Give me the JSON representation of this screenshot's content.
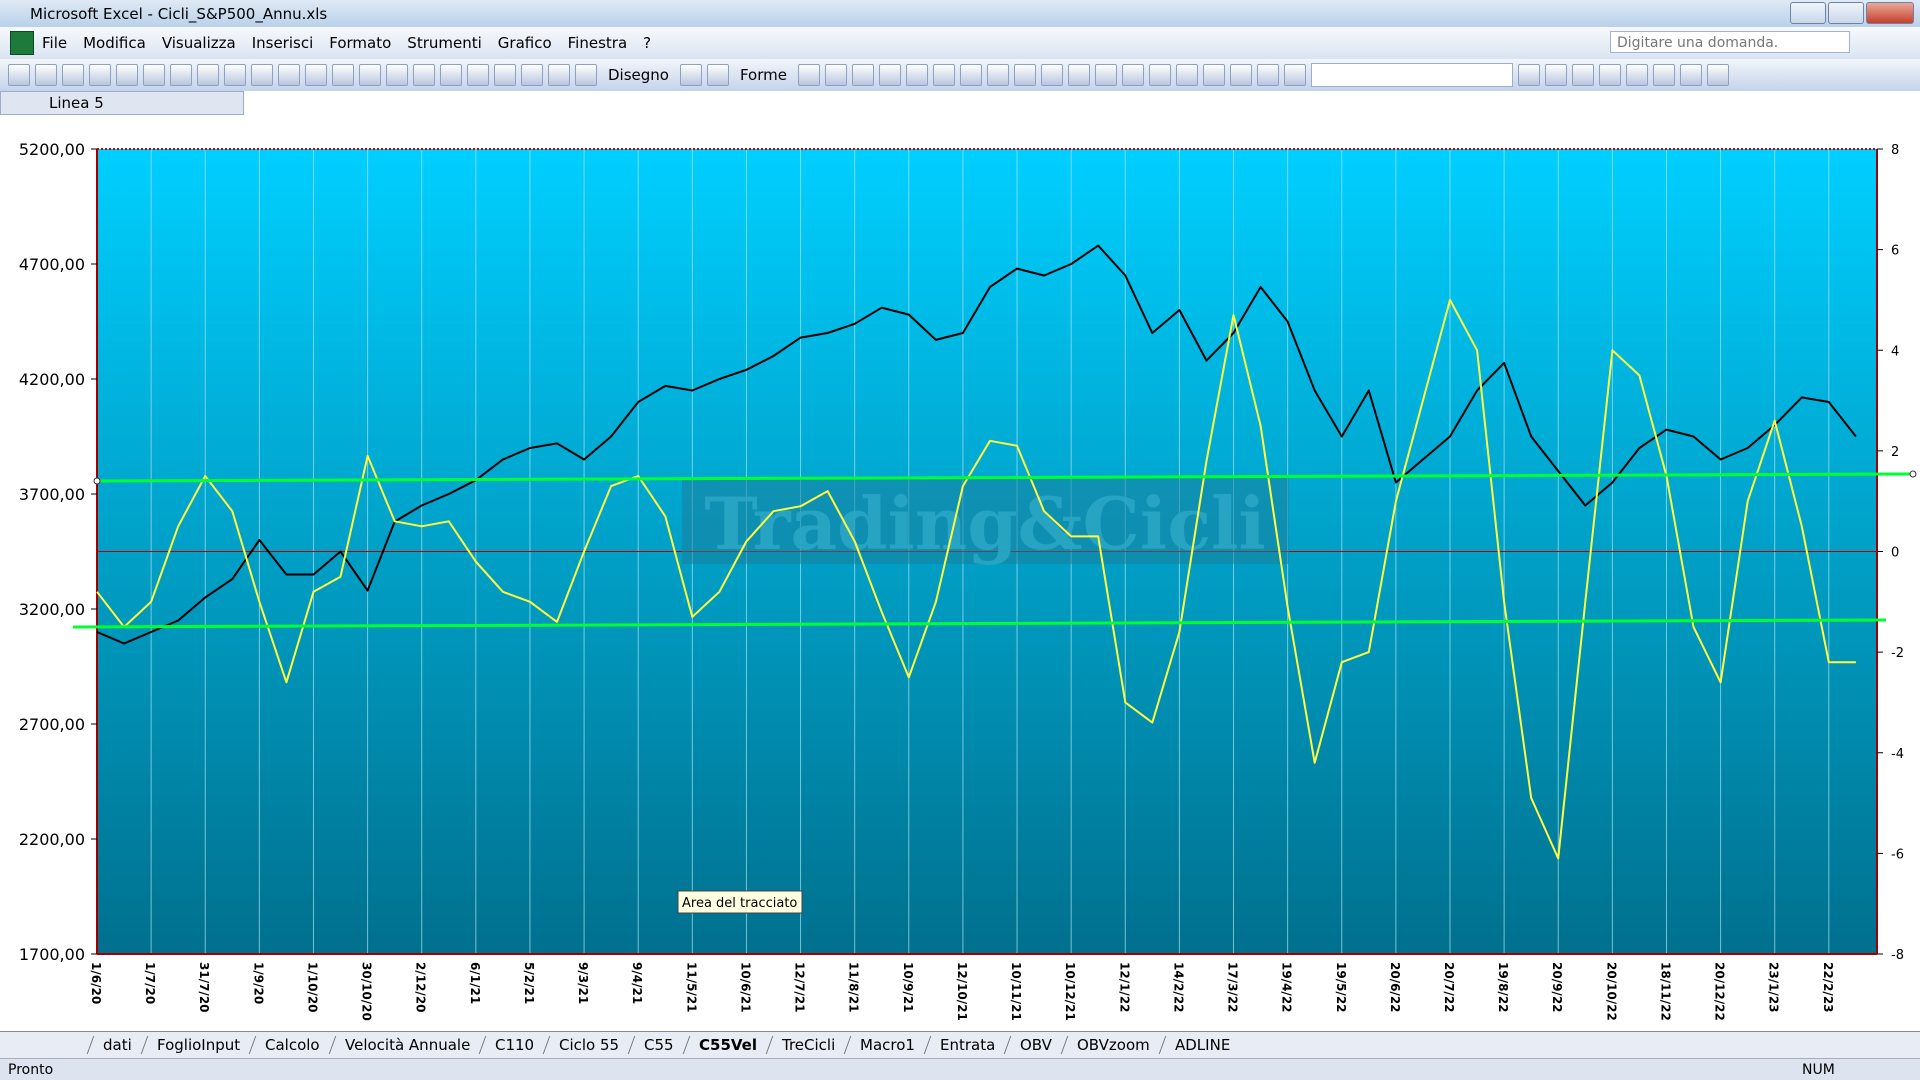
{
  "window": {
    "title": "Microsoft Excel - Cicli_S&P500_Annu.xls"
  },
  "menu": [
    "File",
    "Modifica",
    "Visualizza",
    "Inserisci",
    "Formato",
    "Strumenti",
    "Grafico",
    "Finestra",
    "?"
  ],
  "toolbar": {
    "drawing": "Disegno",
    "shapes": "Forme",
    "ask": "Digitare una domanda."
  },
  "name_box": "Linea 5",
  "chart_data": {
    "type": "line",
    "watermark": "Trading&Cicli",
    "tooltip": "Area del tracciato",
    "categories": [
      "1/6/20",
      null,
      "1/7/20",
      null,
      "31/7/20",
      null,
      "1/9/20",
      null,
      "1/10/20",
      null,
      "30/10/20",
      null,
      "2/12/20",
      null,
      "6/1/21",
      null,
      "5/2/21",
      null,
      "9/3/21",
      null,
      "9/4/21",
      null,
      "11/5/21",
      null,
      "10/6/21",
      null,
      "12/7/21",
      null,
      "11/8/21",
      null,
      "10/9/21",
      null,
      "12/10/21",
      null,
      "10/11/21",
      null,
      "10/12/21",
      null,
      "12/1/22",
      null,
      "14/2/22",
      null,
      "17/3/22",
      null,
      "19/4/22",
      null,
      "19/5/22",
      null,
      "20/6/22",
      null,
      "20/7/22",
      null,
      "19/8/22",
      null,
      "20/9/22",
      null,
      "20/10/22",
      null,
      "18/11/22",
      null,
      "20/12/22",
      null,
      "23/1/23",
      null,
      "22/2/23",
      null
    ],
    "series": [
      {
        "color": "#000000",
        "values": [
          3100,
          3050,
          3100,
          3150,
          3250,
          3330,
          3500,
          3350,
          3350,
          3450,
          3280,
          3580,
          3650,
          3700,
          3760,
          3850,
          3900,
          3920,
          3850,
          3950,
          4100,
          4170,
          4150,
          4200,
          4240,
          4300,
          4380,
          4400,
          4440,
          4510,
          4480,
          4370,
          4400,
          4600,
          4680,
          4650,
          4700,
          4780,
          4650,
          4400,
          4500,
          4280,
          4400,
          4600,
          4450,
          4150,
          3950,
          4150,
          3750,
          3850,
          3950,
          4150,
          4270,
          3950,
          3800,
          3650,
          3750,
          3900,
          3980,
          3950,
          3850,
          3900,
          4000,
          4120,
          4100,
          3950
        ]
      },
      {
        "color": "#ffff40",
        "axis": "y2",
        "values": [
          -0.8,
          -1.5,
          -1.0,
          0.5,
          1.5,
          0.8,
          -1.0,
          -2.6,
          -0.8,
          -0.5,
          1.9,
          0.6,
          0.5,
          0.6,
          -0.2,
          -0.8,
          -1.0,
          -1.4,
          0.0,
          1.3,
          1.5,
          0.7,
          -1.3,
          -0.8,
          0.2,
          0.8,
          0.9,
          1.2,
          0.2,
          -1.2,
          -2.5,
          -1.0,
          1.3,
          2.2,
          2.1,
          0.8,
          0.3,
          0.3,
          -3.0,
          -3.4,
          -1.6,
          1.8,
          4.7,
          2.5,
          -1.1,
          -4.2,
          -2.2,
          -2.0,
          1.0,
          3.0,
          5.0,
          4.0,
          -1.0,
          -4.9,
          -6.1,
          -1.0,
          4.0,
          3.5,
          1.5,
          -1.5,
          -2.6,
          1.0,
          2.6,
          0.5,
          -2.2,
          -2.2
        ]
      }
    ],
    "ylim": [
      1700,
      5200
    ],
    "yticks": [
      {
        "value": 5200,
        "label": "5200,00"
      },
      {
        "value": 4700,
        "label": "4700,00"
      },
      {
        "value": 4200,
        "label": "4200,00"
      },
      {
        "value": 3700,
        "label": "3700,00"
      },
      {
        "value": 3200,
        "label": "3200,00"
      },
      {
        "value": 2700,
        "label": "2700,00"
      },
      {
        "value": 2200,
        "label": "2200,00"
      },
      {
        "value": 1700,
        "label": "1700,00"
      }
    ],
    "y2lim": [
      -8,
      8
    ],
    "y2ticks": [
      8,
      6,
      4,
      2,
      0,
      -2,
      -4,
      -6,
      -8
    ],
    "xgrid": true
  },
  "sheet_tabs": [
    "dati",
    "FoglioInput",
    "Calcolo",
    "Velocità Annuale",
    "C110",
    "Ciclo 55",
    "C55",
    "C55Vel",
    "TreCicli",
    "Macro1",
    "Entrata",
    "OBV",
    "OBVzoom",
    "ADLINE"
  ],
  "status": {
    "left": "Pronto",
    "right": "NUM"
  }
}
